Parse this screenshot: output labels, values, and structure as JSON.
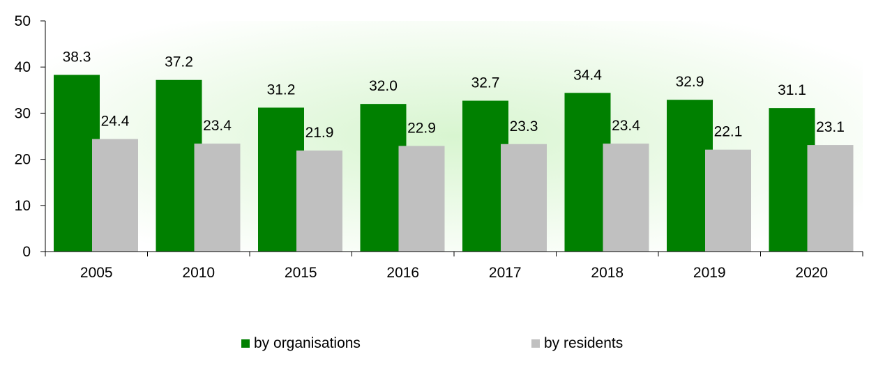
{
  "chart_data": {
    "type": "bar",
    "categories": [
      "2005",
      "2010",
      "2015",
      "2016",
      "2017",
      "2018",
      "2019",
      "2020"
    ],
    "series": [
      {
        "name": "by organisations",
        "color": "#008000",
        "values": [
          38.3,
          37.2,
          31.2,
          32.0,
          32.7,
          34.4,
          32.9,
          31.1
        ],
        "labels": [
          "38.3",
          "37.2",
          "31.2",
          "32.0",
          "32.7",
          "34.4",
          "32.9",
          "31.1"
        ]
      },
      {
        "name": "by residents",
        "color": "#c0c0c0",
        "values": [
          24.4,
          23.4,
          21.9,
          22.9,
          23.3,
          23.4,
          22.1,
          23.1
        ],
        "labels": [
          "24.4",
          "23.4",
          "21.9",
          "22.9",
          "23.3",
          "23.4",
          "22.1",
          "23.1"
        ]
      }
    ],
    "ylim": [
      0,
      50
    ],
    "yticks": [
      "0",
      "10",
      "20",
      "30",
      "40",
      "50"
    ],
    "title": "",
    "xlabel": "",
    "ylabel": "",
    "legend_position": "bottom",
    "background_gradient": [
      "#d8f5d0",
      "#ffffff"
    ]
  }
}
